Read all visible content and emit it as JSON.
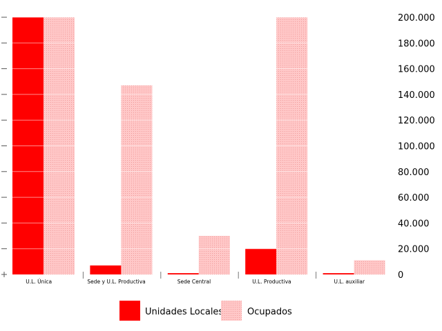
{
  "chart_data": {
    "type": "bar",
    "categories": [
      "U.L. Única",
      "Sede y U.L. Productiva",
      "Sede Central",
      "U.L. Productiva",
      "U.L. auxiliar"
    ],
    "series": [
      {
        "name": "Unidades Locales",
        "color": "#ff0000",
        "values": [
          200000,
          7000,
          1000,
          20000,
          1000
        ]
      },
      {
        "name": "Ocupados",
        "color": "#ffc8c8",
        "values": [
          200000,
          147000,
          30000,
          200000,
          11000
        ]
      }
    ],
    "ylim": [
      0,
      200000
    ],
    "yticks": [
      "0",
      "20.000",
      "40.000",
      "60.000",
      "80.000",
      "100.000",
      "120.000",
      "140.000",
      "160.000",
      "180.000",
      "200.000"
    ],
    "grid": true,
    "legend_position": "bottom"
  }
}
